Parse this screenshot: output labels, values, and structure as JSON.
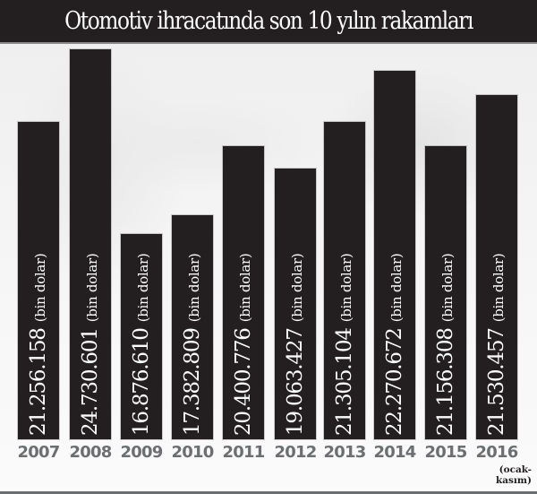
{
  "title": "Otomotiv ihracatında son 10 yılın rakamları",
  "unit_label": "(bin dolar)",
  "note_2016": "(ocak-\nkasım)",
  "colors": {
    "bar": "#231f20",
    "title_bg": "#231f20",
    "year_text": "#6d6e71",
    "label_text": "#ffffff"
  },
  "bars": [
    {
      "year": "2007",
      "value_text": "21.256.158",
      "unit": "(bin dolar)"
    },
    {
      "year": "2008",
      "value_text": "24.730.601",
      "unit": "(bin dolar)"
    },
    {
      "year": "2009",
      "value_text": "16.876.610",
      "unit": "(bin dolar)"
    },
    {
      "year": "2010",
      "value_text": "17.382.809",
      "unit": "(bin dolar)"
    },
    {
      "year": "2011",
      "value_text": "20.400.776",
      "unit": "(bin dolar)"
    },
    {
      "year": "2012",
      "value_text": "19.063.427",
      "unit": "(bin dolar)"
    },
    {
      "year": "2013",
      "value_text": "21.305.104",
      "unit": "(bin dolar)"
    },
    {
      "year": "2014",
      "value_text": "22.270.672",
      "unit": "(bin dolar)"
    },
    {
      "year": "2015",
      "value_text": "21.156.308",
      "unit": "(bin dolar)"
    },
    {
      "year": "2016",
      "value_text": "21.530.457",
      "unit": "(bin dolar)"
    }
  ],
  "chart_data": {
    "type": "bar",
    "title": "Otomotiv ihracatında son 10 yılın rakamları",
    "xlabel": "",
    "ylabel": "bin dolar",
    "categories": [
      "2007",
      "2008",
      "2009",
      "2010",
      "2011",
      "2012",
      "2013",
      "2014",
      "2015",
      "2016"
    ],
    "values": [
      21256158,
      24730601,
      16876610,
      17382809,
      20400776,
      19063427,
      21305104,
      22270672,
      21156308,
      21530457
    ],
    "annotations": [
      "Values in bin dolar (thousand USD)",
      "2016: (ocak-kasım)"
    ],
    "grid": false,
    "legend": null
  }
}
